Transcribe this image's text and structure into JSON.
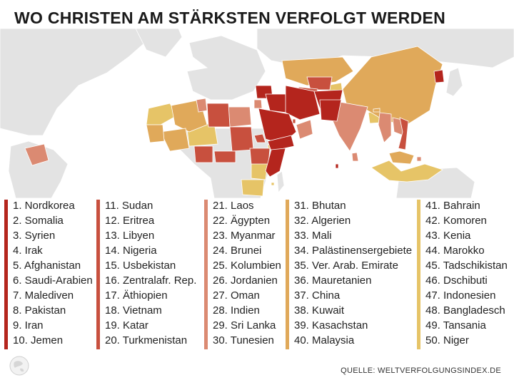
{
  "title": "WO CHRISTEN AM STÄRKSTEN VERFOLGT WERDEN",
  "source": "QUELLE: WELTVERFOLGUNGSINDEX.DE",
  "colors": {
    "rank_1_10": "#b4251d",
    "rank_11_20": "#c8503e",
    "rank_21_30": "#db8a72",
    "rank_31_40": "#e0a95a",
    "rank_41_50": "#e6c467",
    "land": "#e3e3e3",
    "ocean": "#ffffff"
  },
  "legend": [
    {
      "items": [
        "1. Nordkorea",
        "2. Somalia",
        "3. Syrien",
        "4. Irak",
        "5. Afghanistan",
        "6. Saudi-Arabien",
        "7. Malediven",
        "8. Pakistan",
        "9. Iran",
        "10. Jemen"
      ]
    },
    {
      "items": [
        "11. Sudan",
        "12. Eritrea",
        "13. Libyen",
        "14. Nigeria",
        "15. Usbekistan",
        "16. Zentralafr. Rep.",
        "17. Äthiopien",
        "18. Vietnam",
        "19. Katar",
        "20. Turkmenistan"
      ]
    },
    {
      "items": [
        "21. Laos",
        "22. Ägypten",
        "23. Myanmar",
        "24. Brunei",
        "25. Kolumbien",
        "26. Jordanien",
        "27. Oman",
        "28. Indien",
        "29. Sri Lanka",
        "30. Tunesien"
      ]
    },
    {
      "items": [
        "31. Bhutan",
        "32. Algerien",
        "33. Mali",
        "34. Palästinensergebiete",
        "35. Ver. Arab. Emirate",
        "36. Mauretanien",
        "37. China",
        "38. Kuwait",
        "39. Kasachstan",
        "40. Malaysia"
      ]
    },
    {
      "items": [
        "41. Bahrain",
        "42. Komoren",
        "43. Kenia",
        "44. Marokko",
        "45. Tadschikistan",
        "46. Dschibuti",
        "47. Indonesien",
        "48. Bangladesch",
        "49. Tansania",
        "50. Niger"
      ]
    }
  ]
}
